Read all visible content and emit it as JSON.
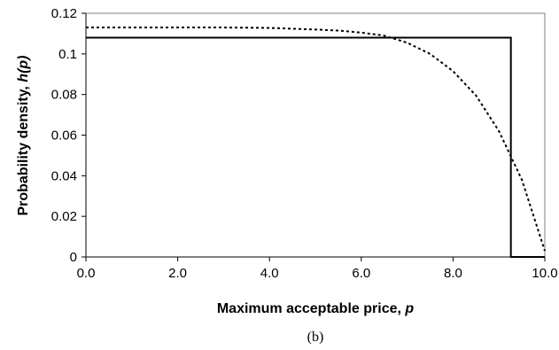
{
  "chart_data": {
    "type": "line",
    "xlabel_prefix": "Maximum acceptable price, ",
    "xlabel_var": "p",
    "ylabel_prefix": "Probability density, ",
    "ylabel_var": "h(p)",
    "caption": "(b)",
    "xlim": [
      0,
      10
    ],
    "ylim": [
      0,
      0.12
    ],
    "x_ticks": [
      0,
      2,
      4,
      6,
      8,
      10
    ],
    "x_tick_labels": [
      "0.0",
      "2.0",
      "4.0",
      "6.0",
      "8.0",
      "10.0"
    ],
    "y_ticks": [
      0,
      0.02,
      0.04,
      0.06,
      0.08,
      0.1,
      0.12
    ],
    "y_tick_labels": [
      "0",
      "0.02",
      "0.04",
      "0.06",
      "0.08",
      "0.1",
      "0.12"
    ],
    "grid": false,
    "legend": "none",
    "series": [
      {
        "style": "solid",
        "color": "#000000",
        "x": [
          0,
          9.26,
          9.26,
          10
        ],
        "y": [
          0.108,
          0.108,
          0,
          0
        ]
      },
      {
        "style": "dotted",
        "color": "#000000",
        "x": [
          0,
          1,
          2,
          3,
          4,
          5,
          5.5,
          6,
          6.5,
          7,
          7.5,
          8,
          8.5,
          9,
          9.5,
          10
        ],
        "y": [
          0.113,
          0.113,
          0.113,
          0.113,
          0.1128,
          0.112,
          0.1115,
          0.1105,
          0.109,
          0.1055,
          0.1,
          0.0915,
          0.0795,
          0.062,
          0.038,
          0.003
        ]
      }
    ]
  }
}
